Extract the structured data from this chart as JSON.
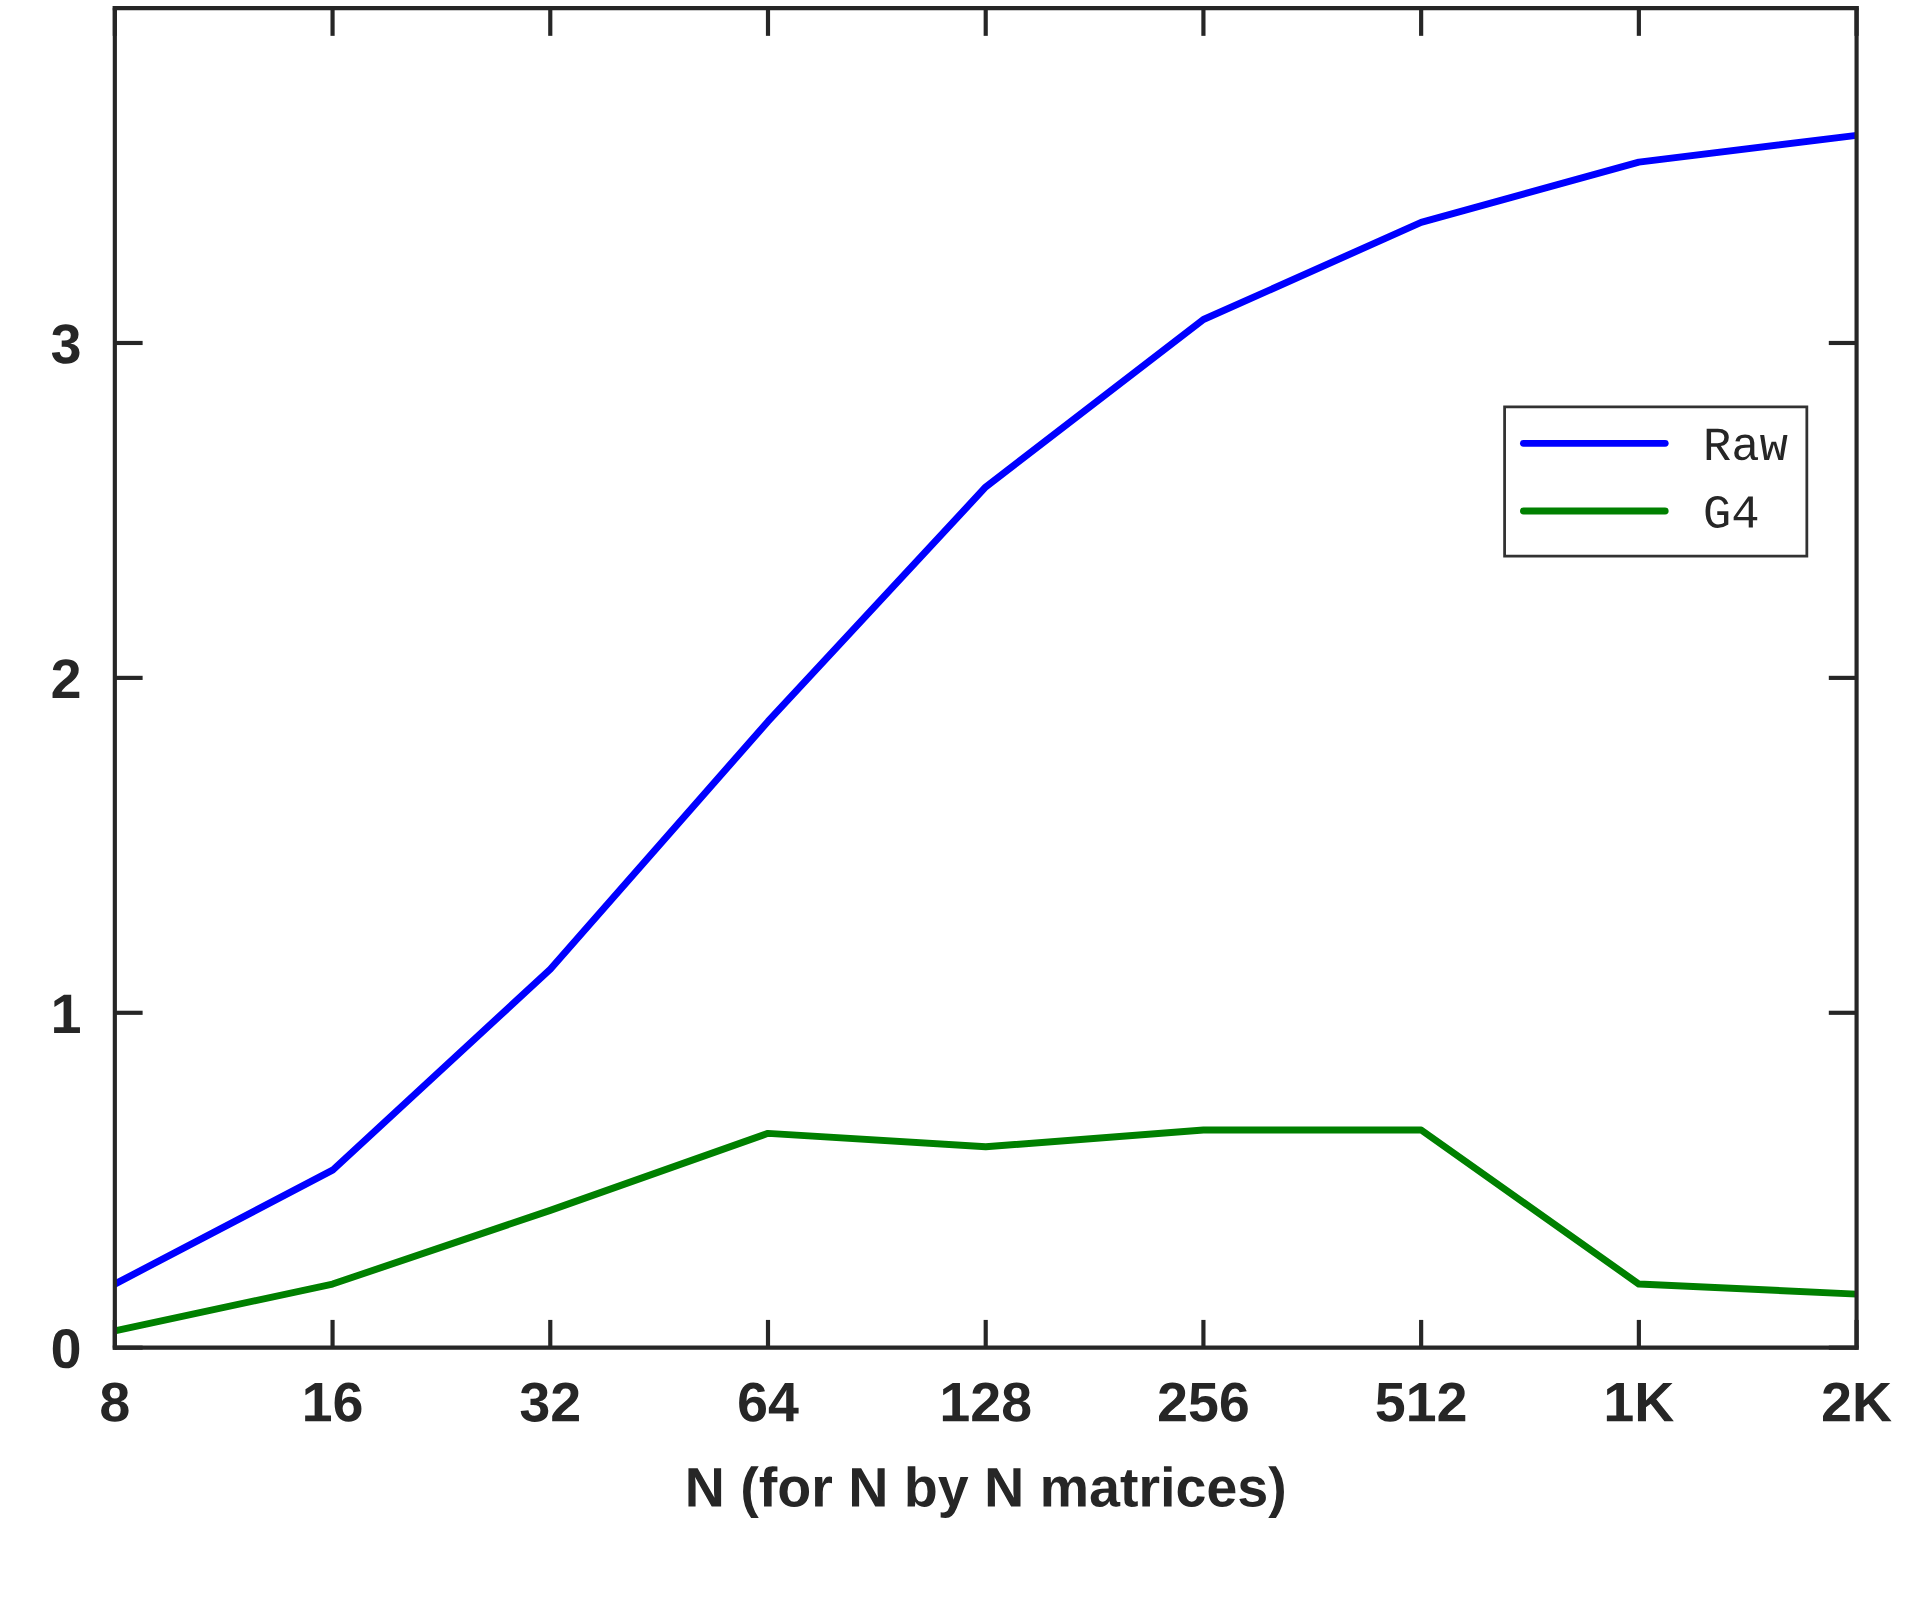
{
  "chart_data": {
    "type": "line",
    "xlabel": "N (for N by N matrices)",
    "log": "x",
    "x": [
      8,
      16,
      32,
      64,
      128,
      256,
      512,
      1024,
      2048
    ],
    "series": [
      {
        "name": "Raw",
        "color": "#0000ff",
        "values": [
          0.19,
          0.53,
          1.13,
          1.87,
          2.57,
          3.07,
          3.36,
          3.54,
          3.62
        ]
      },
      {
        "name": "G4",
        "color": "#008000",
        "values": [
          0.05,
          0.19,
          0.41,
          0.64,
          0.6,
          0.65,
          0.65,
          0.19,
          0.16
        ]
      }
    ],
    "xlim": [
      8,
      2048
    ],
    "ylim": [
      0,
      4
    ],
    "xticks": [
      8,
      16,
      32,
      64,
      128,
      256,
      512,
      {
        "value": 1024,
        "label": "1K"
      },
      {
        "value": 2048,
        "label": "2K"
      }
    ],
    "yticks": [
      0,
      1,
      2,
      3
    ],
    "grid": false,
    "legend": "top right",
    "marker": "none",
    "line_style": "solid"
  }
}
